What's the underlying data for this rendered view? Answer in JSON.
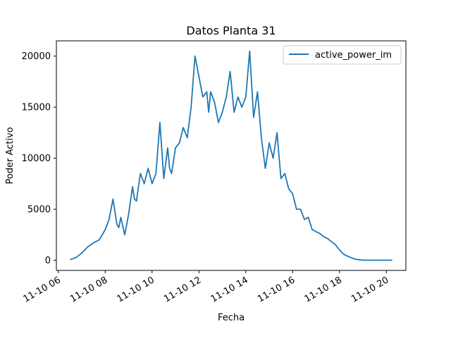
{
  "chart_data": {
    "type": "line",
    "title": "Datos Planta 31",
    "xlabel": "Fecha",
    "ylabel": "Poder Activo",
    "x_ticks": [
      "11-10 06",
      "11-10 08",
      "11-10 10",
      "11-10 12",
      "11-10 14",
      "11-10 16",
      "11-10 18",
      "11-10 20"
    ],
    "y_ticks": [
      "0",
      "5000",
      "10000",
      "15000",
      "20000"
    ],
    "xlim": [
      "2023-11-10 05:55",
      "2023-11-10 20:50"
    ],
    "ylim": [
      -1000,
      21500
    ],
    "legend_position": "upper right",
    "grid": false,
    "series": [
      {
        "name": "active_power_im",
        "color": "#1f77b4",
        "x": [
          "06:30",
          "06:45",
          "07:00",
          "07:15",
          "07:30",
          "07:45",
          "08:00",
          "08:10",
          "08:20",
          "08:30",
          "08:35",
          "08:40",
          "08:50",
          "09:00",
          "09:10",
          "09:15",
          "09:20",
          "09:30",
          "09:40",
          "09:50",
          "10:00",
          "10:10",
          "10:20",
          "10:30",
          "10:40",
          "10:45",
          "10:50",
          "11:00",
          "11:10",
          "11:20",
          "11:30",
          "11:40",
          "11:50",
          "12:00",
          "12:10",
          "12:20",
          "12:25",
          "12:30",
          "12:40",
          "12:50",
          "13:00",
          "13:10",
          "13:20",
          "13:30",
          "13:40",
          "13:50",
          "14:00",
          "14:10",
          "14:20",
          "14:30",
          "14:40",
          "14:45",
          "14:50",
          "15:00",
          "15:10",
          "15:20",
          "15:30",
          "15:40",
          "15:50",
          "16:00",
          "16:10",
          "16:20",
          "16:30",
          "16:40",
          "16:50",
          "17:00",
          "17:10",
          "17:20",
          "17:30",
          "17:40",
          "17:50",
          "18:00",
          "18:10",
          "18:20",
          "18:30",
          "18:40",
          "18:50",
          "19:00",
          "19:10",
          "19:20",
          "19:30",
          "19:40",
          "19:50",
          "20:00",
          "20:10",
          "20:15"
        ],
        "values": [
          50,
          250,
          700,
          1300,
          1700,
          2000,
          3000,
          4000,
          6000,
          3500,
          3200,
          4200,
          2500,
          4500,
          7200,
          6000,
          5800,
          8500,
          7500,
          9000,
          7500,
          8500,
          13500,
          8000,
          11000,
          9000,
          8500,
          11000,
          11500,
          13000,
          12000,
          15000,
          20000,
          18000,
          16000,
          16500,
          14500,
          16500,
          15500,
          13500,
          14500,
          16000,
          18500,
          14500,
          16000,
          15000,
          16000,
          20500,
          14000,
          16500,
          12000,
          10500,
          9000,
          11500,
          10000,
          12500,
          8000,
          8500,
          7000,
          6500,
          5000,
          5000,
          4000,
          4200,
          3000,
          2800,
          2600,
          2300,
          2100,
          1800,
          1500,
          1000,
          600,
          400,
          250,
          100,
          50,
          0,
          0,
          0,
          0,
          0,
          0,
          0,
          0,
          0
        ]
      }
    ]
  }
}
